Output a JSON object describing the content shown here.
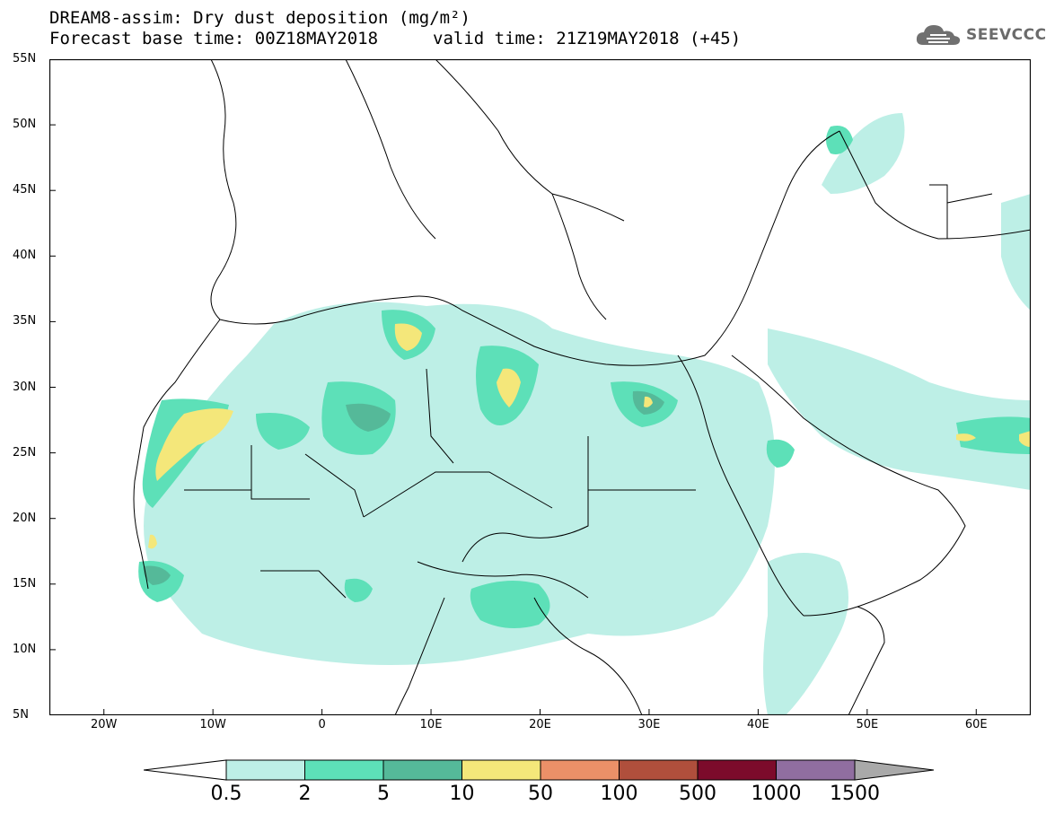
{
  "title": {
    "line1": "DREAM8-assim: Dry dust deposition (mg/m²)",
    "line2": "Forecast base time: 00Z18MAY2018",
    "valid": "valid time: 21Z19MAY2018 (+45)"
  },
  "logo": {
    "text": "SEEVCCC",
    "icon": "cloud-icon"
  },
  "axes": {
    "lat_labels": [
      "55N",
      "50N",
      "45N",
      "40N",
      "35N",
      "30N",
      "25N",
      "20N",
      "15N",
      "10N",
      "5N"
    ],
    "lon_labels": [
      "20W",
      "10W",
      "0",
      "10E",
      "20E",
      "30E",
      "40E",
      "50E",
      "60E"
    ],
    "lat_range": [
      5,
      55
    ],
    "lon_range": [
      -25,
      65
    ]
  },
  "legend": {
    "labels": [
      "0.5",
      "2",
      "5",
      "10",
      "50",
      "100",
      "500",
      "1000",
      "1500"
    ],
    "colors": [
      "#bdefe6",
      "#5de0b8",
      "#55b999",
      "#f4e77a",
      "#eb9068",
      "#b04f3c",
      "#7c0b2b",
      "#906ea0",
      "#a9a9a9"
    ]
  }
}
